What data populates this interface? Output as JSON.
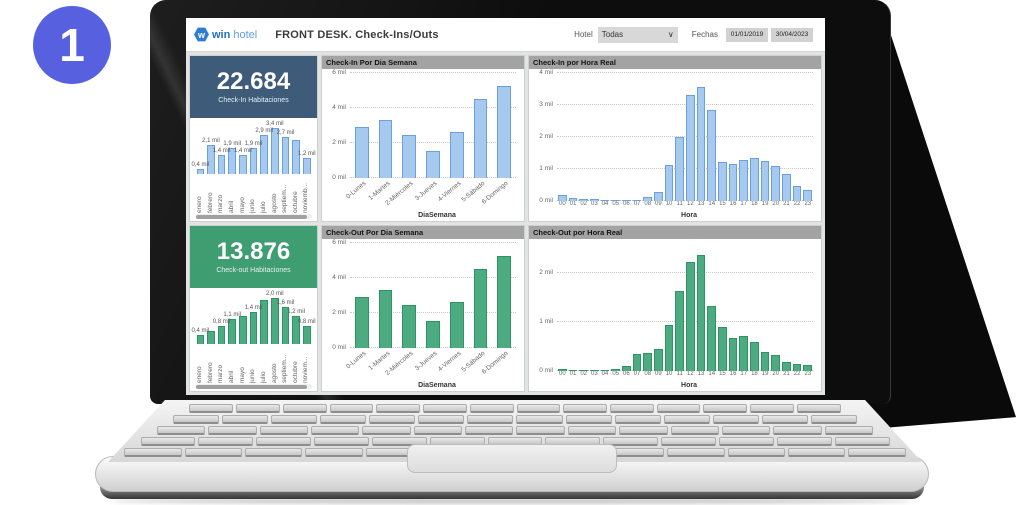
{
  "badge": {
    "number": "1"
  },
  "icons": {
    "chevron_down": "∨",
    "logo_letter": "w"
  },
  "colors": {
    "badge_blue": "#5761DF",
    "accent_blue_card": "#3E5C7A",
    "accent_green_card": "#3F9D72",
    "bar_blue_fill": "#A6C9EF",
    "bar_blue_stroke": "#6AA1DD",
    "bar_green_fill": "#4CAB80",
    "bar_green_stroke": "#2F9464",
    "panel_title_bg": "#A3A3A3"
  },
  "header": {
    "logo": {
      "icon": "winhotel-hexagon",
      "text_bold": "win",
      "text_light": "hotel"
    },
    "title": "FRONT DESK. Check-Ins/Outs",
    "hotel_label": "Hotel",
    "hotel_value": "Todas",
    "fechas_label": "Fechas",
    "date_from": "01/01/2019",
    "date_to": "30/04/2023"
  },
  "kpi_checkin": {
    "value": "22.684",
    "label": "Check-In Habitaciones"
  },
  "kpi_checkout": {
    "value": "13.876",
    "label": "Check-out Habitaciones"
  },
  "chart_data": {
    "checkin_months": {
      "type": "bar",
      "kind": "mini",
      "categories": [
        "enero",
        "febrero",
        "marzo",
        "abril",
        "mayo",
        "junio",
        "julio",
        "agosto",
        "septiem...",
        "octubre",
        "noviemb..."
      ],
      "values": [
        0.4,
        2.1,
        1.4,
        1.9,
        1.4,
        1.9,
        2.9,
        3.4,
        2.7,
        2.5,
        1.2
      ],
      "labels": [
        "0,4 mil",
        "2,1 mil",
        "1,4 mil",
        "1,9 mil",
        "1,4 mil",
        "1,9 mil",
        "2,9 mil",
        "3,4 mil",
        "2,7 mil",
        "",
        "1,2 mil"
      ],
      "ymax": 3.9,
      "bar_fill": "#A6C9EF",
      "bar_stroke": "#6AA1DD"
    },
    "checkin_weekday": {
      "type": "bar",
      "kind": "week",
      "title": "Check-In Por Dia Semana",
      "categories": [
        "0-Lunes",
        "1-Martes",
        "2-Miércoles",
        "3-Jueves",
        "4-Viernes",
        "5-Sábado",
        "6-Domingo"
      ],
      "values": [
        2.9,
        3.3,
        2.45,
        1.55,
        2.65,
        4.5,
        5.25
      ],
      "yticks": [
        {
          "v": 0,
          "label": "0 mil"
        },
        {
          "v": 2,
          "label": "2 mil"
        },
        {
          "v": 4,
          "label": "4 mil"
        },
        {
          "v": 6,
          "label": "6 mil"
        }
      ],
      "ymax": 6,
      "xlabel": "DiaSemana",
      "bar_fill": "#A6C9EF",
      "bar_stroke": "#6AA1DD"
    },
    "checkin_hour": {
      "type": "bar",
      "kind": "hour",
      "title": "Check-In por Hora Real",
      "categories": [
        "00",
        "01",
        "02",
        "03",
        "04",
        "05",
        "06",
        "07",
        "08",
        "09",
        "10",
        "11",
        "12",
        "13",
        "14",
        "15",
        "16",
        "17",
        "18",
        "19",
        "20",
        "21",
        "22",
        "23"
      ],
      "values": [
        0.18,
        0.08,
        0.07,
        0.05,
        0.02,
        0.02,
        0.02,
        0.03,
        0.12,
        0.28,
        1.12,
        2.0,
        3.3,
        3.55,
        2.85,
        1.22,
        1.15,
        1.28,
        1.33,
        1.25,
        1.1,
        0.85,
        0.48,
        0.33
      ],
      "yticks": [
        {
          "v": 0,
          "label": "0 mil"
        },
        {
          "v": 1,
          "label": "1 mil"
        },
        {
          "v": 2,
          "label": "2 mil"
        },
        {
          "v": 3,
          "label": "3 mil"
        },
        {
          "v": 4,
          "label": "4 mil"
        }
      ],
      "ymax": 4,
      "xlabel": "Hora",
      "bar_fill": "#A6C9EF",
      "bar_stroke": "#6AA1DD"
    },
    "checkout_months": {
      "type": "bar",
      "kind": "mini",
      "categories": [
        "enero",
        "febrero",
        "marzo",
        "abril",
        "mayo",
        "junio",
        "julio",
        "agosto",
        "septiem...",
        "octubre",
        "noviem..."
      ],
      "values": [
        0.4,
        0.55,
        0.8,
        1.1,
        1.2,
        1.4,
        1.9,
        2.0,
        1.6,
        1.2,
        0.8
      ],
      "labels": [
        "0,4 mil",
        "",
        "0,8 mil",
        "1,1 mil",
        "",
        "1,4 mil",
        "",
        "2,0 mil",
        "1,6 mil",
        "1,2 mil",
        "0,8 mil"
      ],
      "ymax": 2.3,
      "bar_fill": "#4CAB80",
      "bar_stroke": "#2F9464"
    },
    "checkout_weekday": {
      "type": "bar",
      "kind": "week",
      "title": "Check-Out Por Dia Semana",
      "categories": [
        "0-Lunes",
        "1-Martes",
        "2-Miércoles",
        "3-Jueves",
        "4-Viernes",
        "5-Sábado",
        "6-Domingo"
      ],
      "values": [
        2.9,
        3.3,
        2.45,
        1.55,
        2.65,
        4.5,
        5.25
      ],
      "yticks": [
        {
          "v": 0,
          "label": "0 mil"
        },
        {
          "v": 2,
          "label": "2 mil"
        },
        {
          "v": 4,
          "label": "4 mil"
        },
        {
          "v": 6,
          "label": "6 mil"
        }
      ],
      "ymax": 6,
      "xlabel": "DiaSemana",
      "bar_fill": "#4CAB80",
      "bar_stroke": "#2F9464"
    },
    "checkout_hour": {
      "type": "bar",
      "kind": "hour",
      "title": "Check-Out por Hora Real",
      "categories": [
        "00",
        "01",
        "02",
        "03",
        "04",
        "05",
        "06",
        "07",
        "08",
        "09",
        "10",
        "11",
        "12",
        "13",
        "14",
        "15",
        "16",
        "17",
        "18",
        "19",
        "20",
        "21",
        "22",
        "23"
      ],
      "values": [
        0.05,
        0.03,
        0.02,
        0.02,
        0.03,
        0.05,
        0.1,
        0.35,
        0.36,
        0.44,
        0.93,
        1.62,
        2.22,
        2.35,
        1.32,
        0.9,
        0.68,
        0.71,
        0.58,
        0.38,
        0.33,
        0.19,
        0.15,
        0.12
      ],
      "yticks": [
        {
          "v": 0,
          "label": "0 mil"
        },
        {
          "v": 1,
          "label": "1 mil"
        },
        {
          "v": 2,
          "label": "2 mil"
        }
      ],
      "ymax": 2.6,
      "xlabel": "Hora",
      "bar_fill": "#4CAB80",
      "bar_stroke": "#2F9464"
    }
  }
}
